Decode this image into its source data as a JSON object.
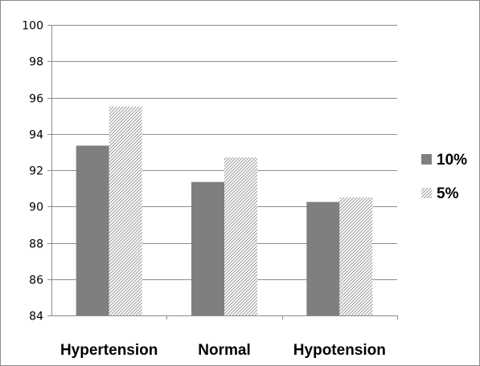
{
  "chart_data": {
    "type": "bar",
    "categories": [
      "Hypertension",
      "Normal",
      "Hypotension"
    ],
    "series": [
      {
        "name": "10%",
        "values": [
          93.35,
          91.35,
          90.25
        ],
        "color": "#7f7f7f",
        "pattern": "solid"
      },
      {
        "name": "5%",
        "values": [
          95.5,
          92.7,
          90.5
        ],
        "color": "#a6a6a6",
        "pattern": "diagonal-hatch"
      }
    ],
    "title": "",
    "xlabel": "",
    "ylabel": "",
    "ylim": [
      84,
      100
    ],
    "yticks": [
      84,
      86,
      88,
      90,
      92,
      94,
      96,
      98,
      100
    ],
    "grid": true,
    "legend": "right"
  }
}
